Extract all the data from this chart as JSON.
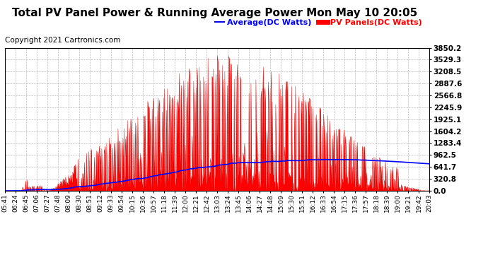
{
  "title": "Total PV Panel Power & Running Average Power Mon May 10 20:05",
  "copyright": "Copyright 2021 Cartronics.com",
  "legend_avg": "Average(DC Watts)",
  "legend_pv": "PV Panels(DC Watts)",
  "ymax": 3850.2,
  "ymin": 0.0,
  "yticks": [
    0.0,
    320.8,
    641.7,
    962.5,
    1283.4,
    1604.2,
    1925.1,
    2245.9,
    2566.8,
    2887.6,
    3208.5,
    3529.3,
    3850.2
  ],
  "xtick_labels": [
    "05:41",
    "06:24",
    "06:45",
    "07:06",
    "07:27",
    "07:48",
    "08:09",
    "08:30",
    "08:51",
    "09:12",
    "09:33",
    "09:54",
    "10:15",
    "10:36",
    "10:57",
    "11:18",
    "11:39",
    "12:00",
    "12:21",
    "12:42",
    "13:03",
    "13:24",
    "13:45",
    "14:06",
    "14:27",
    "14:48",
    "15:09",
    "15:30",
    "15:51",
    "16:12",
    "16:33",
    "16:54",
    "17:15",
    "17:36",
    "17:57",
    "18:18",
    "18:39",
    "19:00",
    "19:21",
    "19:42",
    "20:03"
  ],
  "avg_color": "#0000ff",
  "pv_color": "#ff0000",
  "pv_edge_color": "#dd0000",
  "background_color": "#ffffff",
  "grid_color": "#bbbbbb",
  "title_fontsize": 11,
  "copyright_fontsize": 7.5,
  "legend_fontsize": 8,
  "tick_fontsize": 6.5,
  "ytick_fontsize": 7.5
}
